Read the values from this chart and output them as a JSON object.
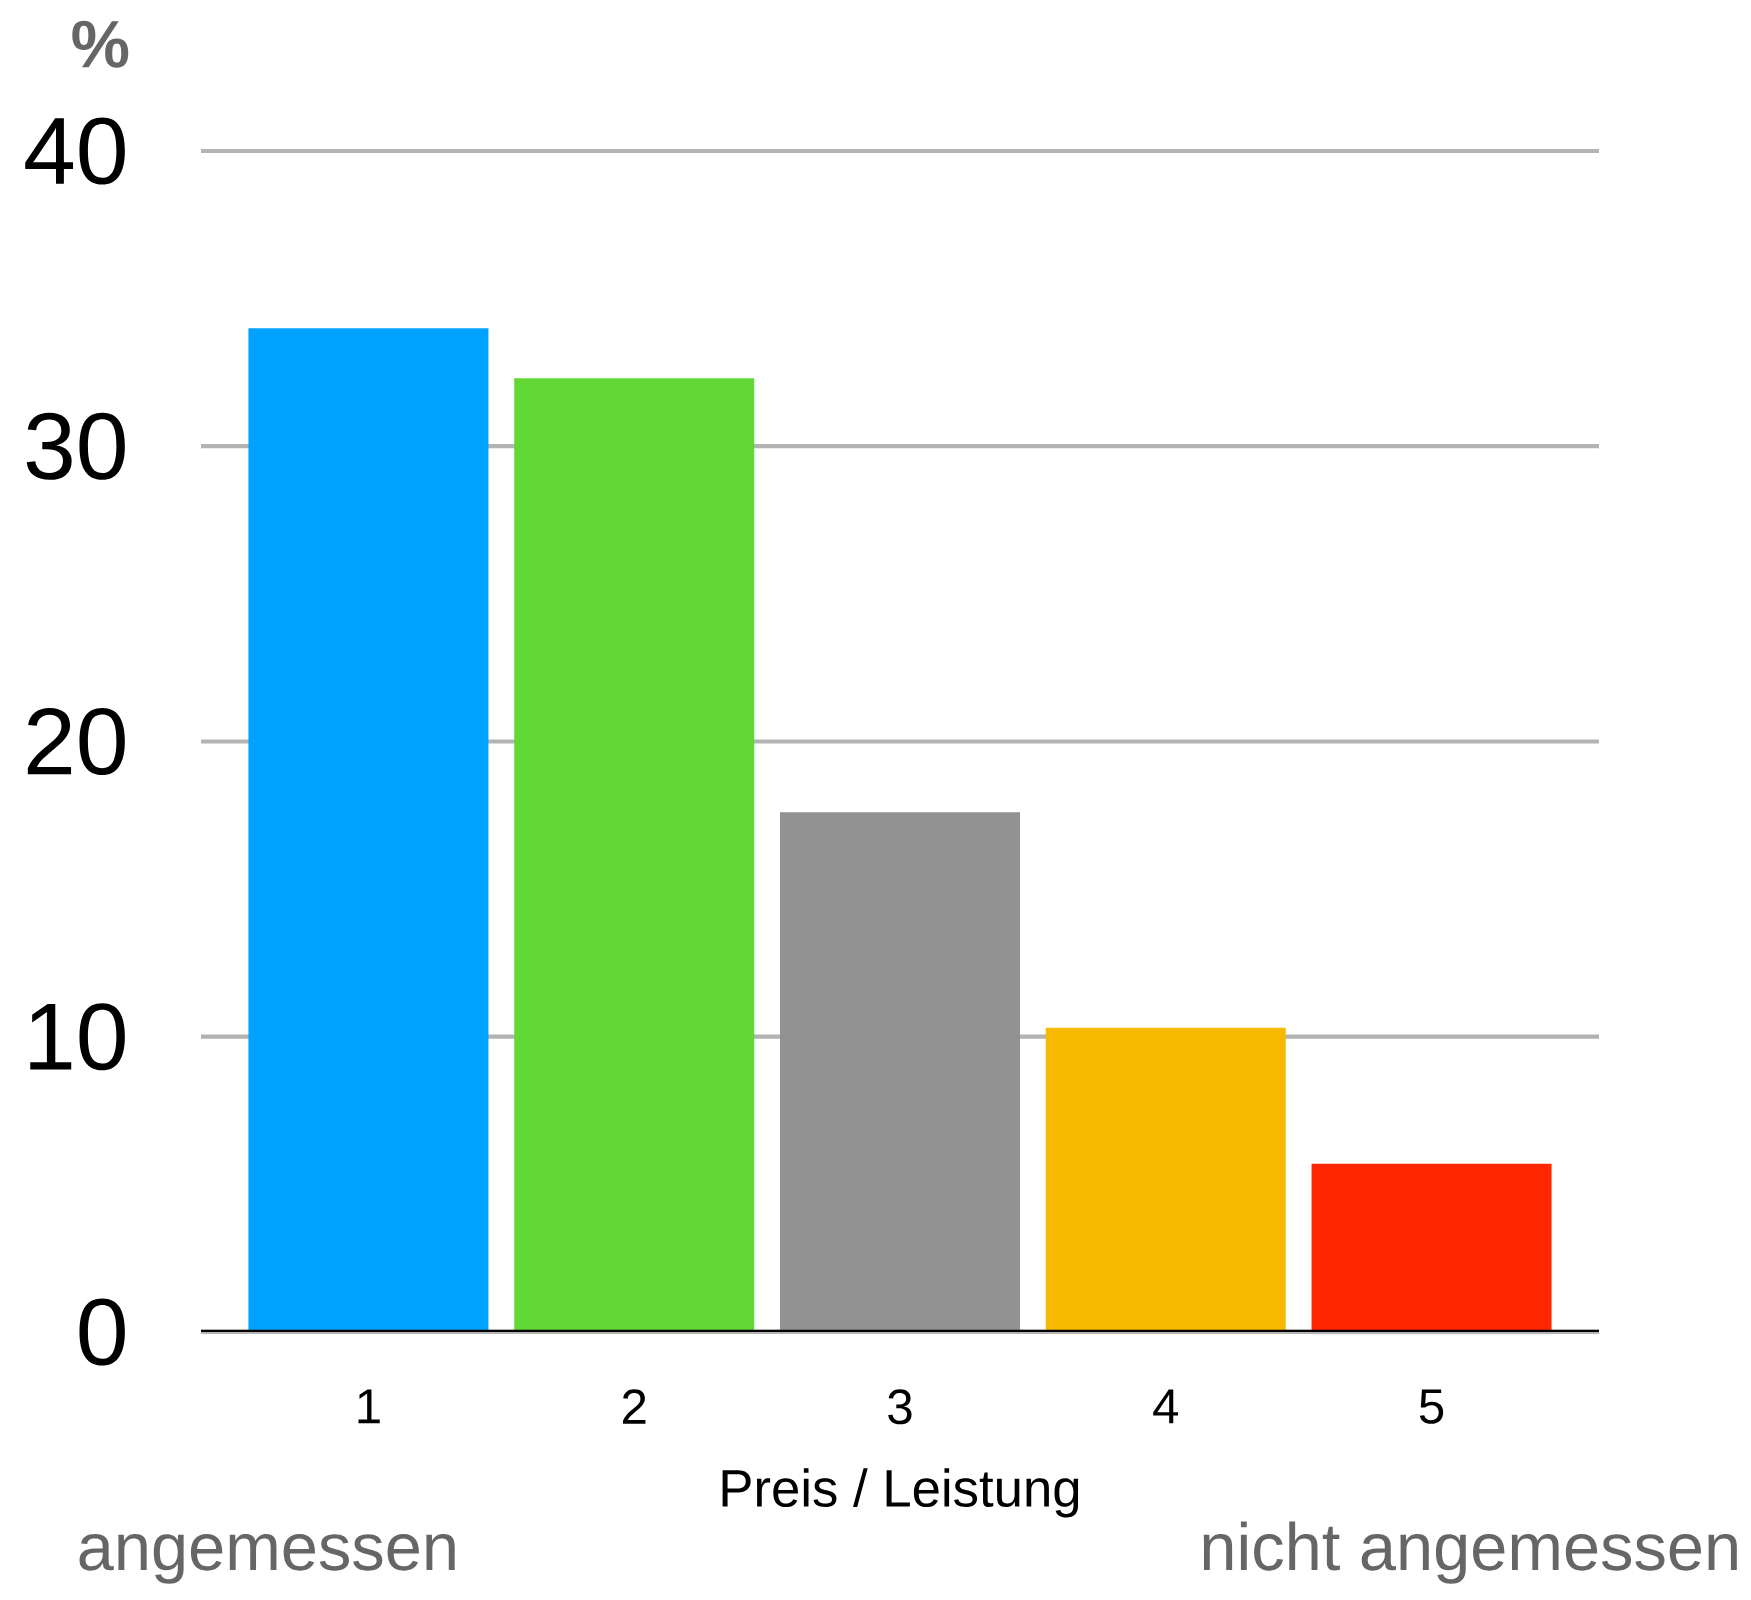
{
  "chart_data": {
    "type": "bar",
    "ylabel": "%",
    "xlabel": "Preis / Leistung",
    "categories": [
      "1",
      "2",
      "3",
      "4",
      "5"
    ],
    "values": [
      34,
      32.3,
      17.6,
      10.3,
      5.7
    ],
    "colors": [
      "#00a2ff",
      "#61d836",
      "#929292",
      "#f8ba00",
      "#ff2600"
    ],
    "ylim": [
      0,
      40
    ],
    "yticks": [
      0,
      10,
      20,
      30,
      40
    ],
    "grid": "y",
    "annotations": [
      "angemessen",
      "nicht angemessen"
    ]
  }
}
